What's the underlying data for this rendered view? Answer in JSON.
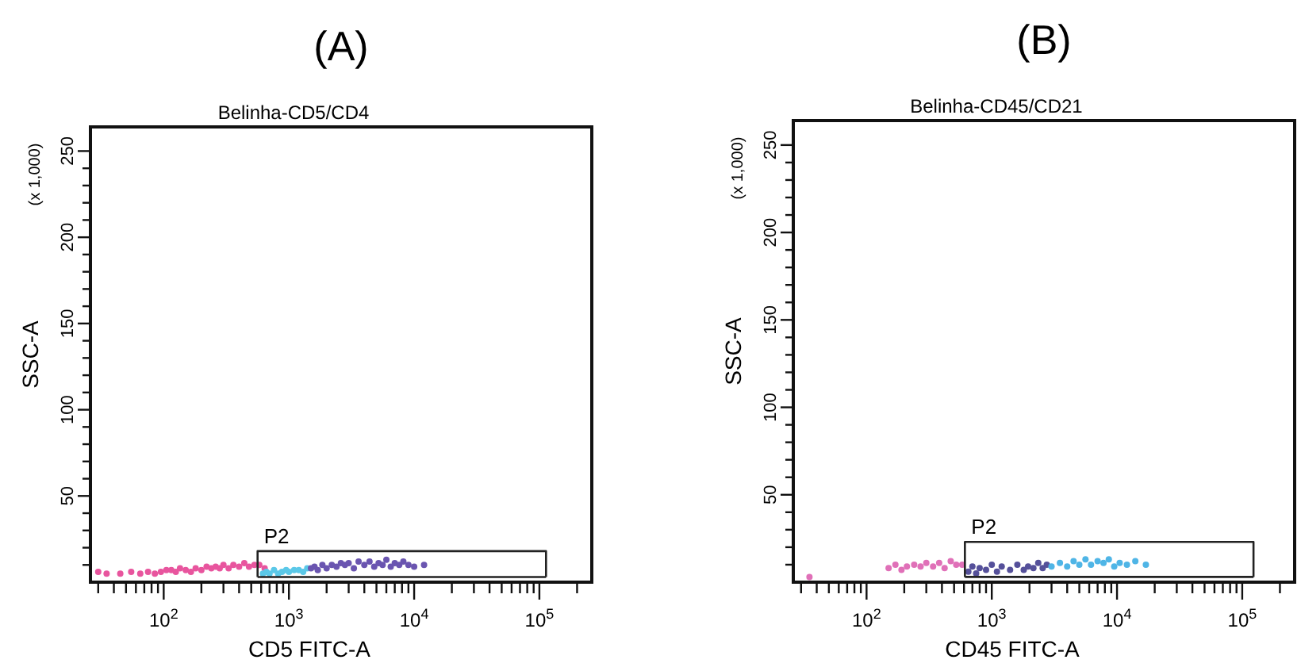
{
  "chart_data": [
    {
      "type": "scatter",
      "title": "(A)",
      "subtitle": "Belinha-CD5/CD4",
      "xlabel": "CD5 FITC-A",
      "ylabel": "SSC-A",
      "log": "x",
      "marker": "circle",
      "annotations": [
        "(x 1,000)",
        {
          "text": "P2",
          "x": 562,
          "y": 18
        }
      ],
      "xlim": [
        26,
        262144
      ],
      "ylim": [
        0,
        264
      ],
      "xticks": [
        {
          "value": 30,
          "label": null
        },
        {
          "value": 40,
          "label": null
        },
        {
          "value": 50,
          "label": null
        },
        {
          "value": 60,
          "label": null
        },
        {
          "value": 70,
          "label": null
        },
        {
          "value": 80,
          "label": null
        },
        {
          "value": 90,
          "label": null
        },
        {
          "value": 100,
          "label": "10$^{2}$"
        },
        {
          "value": 200,
          "label": null
        },
        {
          "value": 300,
          "label": null
        },
        {
          "value": 400,
          "label": null
        },
        {
          "value": 500,
          "label": null
        },
        {
          "value": 600,
          "label": null
        },
        {
          "value": 700,
          "label": null
        },
        {
          "value": 800,
          "label": null
        },
        {
          "value": 900,
          "label": null
        },
        {
          "value": 1000,
          "label": "10$^{3}$"
        },
        {
          "value": 2000,
          "label": null
        },
        {
          "value": 3000,
          "label": null
        },
        {
          "value": 4000,
          "label": null
        },
        {
          "value": 5000,
          "label": null
        },
        {
          "value": 6000,
          "label": null
        },
        {
          "value": 7000,
          "label": null
        },
        {
          "value": 8000,
          "label": null
        },
        {
          "value": 9000,
          "label": null
        },
        {
          "value": 10000,
          "label": "10$^{4}$"
        },
        {
          "value": 20000,
          "label": null
        },
        {
          "value": 30000,
          "label": null
        },
        {
          "value": 40000,
          "label": null
        },
        {
          "value": 50000,
          "label": null
        },
        {
          "value": 60000,
          "label": null
        },
        {
          "value": 70000,
          "label": null
        },
        {
          "value": 80000,
          "label": null
        },
        {
          "value": 90000,
          "label": null
        },
        {
          "value": 100000,
          "label": "10$^{5}$"
        },
        {
          "value": 200000,
          "label": null
        }
      ],
      "yticks": [
        {
          "value": 10,
          "label": null
        },
        {
          "value": 20,
          "label": null
        },
        {
          "value": 30,
          "label": null
        },
        {
          "value": 40,
          "label": null
        },
        50,
        {
          "value": 60,
          "label": null
        },
        {
          "value": 70,
          "label": null
        },
        {
          "value": 80,
          "label": null
        },
        {
          "value": 90,
          "label": null
        },
        100,
        {
          "value": 110,
          "label": null
        },
        {
          "value": 120,
          "label": null
        },
        {
          "value": 130,
          "label": null
        },
        {
          "value": 140,
          "label": null
        },
        150,
        {
          "value": 160,
          "label": null
        },
        {
          "value": 170,
          "label": null
        },
        {
          "value": 180,
          "label": null
        },
        {
          "value": 190,
          "label": null
        },
        200,
        {
          "value": 210,
          "label": null
        },
        {
          "value": 220,
          "label": null
        },
        {
          "value": 230,
          "label": null
        },
        {
          "value": 240,
          "label": null
        },
        250
      ],
      "series": [
        {
          "color": "#e8559e",
          "x": [
            30,
            35,
            45,
            55,
            65,
            75,
            85,
            95,
            105,
            115,
            125,
            135,
            150,
            165,
            180,
            200,
            220,
            240,
            260,
            280,
            300,
            330,
            360,
            400,
            440,
            480,
            530,
            580,
            640
          ],
          "values": [
            6,
            5,
            5,
            6,
            5,
            6,
            5,
            6,
            7,
            7,
            6,
            8,
            7,
            6,
            8,
            7,
            9,
            8,
            9,
            8,
            10,
            8,
            10,
            9,
            11,
            9,
            10,
            10,
            8
          ]
        },
        {
          "color": "#5bc8e8",
          "x": [
            620,
            660,
            700,
            760,
            820,
            880,
            950,
            1000,
            1100,
            1200,
            1300,
            1400
          ],
          "values": [
            5,
            6,
            5,
            7,
            5,
            6,
            7,
            6,
            7,
            7,
            6,
            8
          ]
        },
        {
          "color": "#6a55b0",
          "x": [
            1500,
            1600,
            1700,
            1850,
            2000,
            2200,
            2400,
            2600,
            2800,
            3000,
            3300,
            3600,
            4000,
            4400,
            4800,
            5200,
            5600,
            6000,
            6500,
            7000,
            7600,
            8200,
            9000,
            10000,
            12000
          ],
          "values": [
            8,
            9,
            7,
            10,
            8,
            10,
            9,
            11,
            10,
            11,
            8,
            12,
            10,
            12,
            9,
            11,
            10,
            13,
            9,
            11,
            10,
            12,
            10,
            9,
            10
          ]
        },
        {
          "type": "line",
          "marker": "none",
          "color": "#222222",
          "x": [
            562,
            562,
            113000,
            113000
          ],
          "values": [
            3,
            18,
            18,
            3
          ]
        },
        {
          "type": "line",
          "marker": "none",
          "color": "#222222",
          "x": [
            562,
            113000
          ],
          "values": [
            3,
            3
          ]
        }
      ]
    },
    {
      "type": "scatter",
      "title": "(B)",
      "subtitle": "Belinha-CD45/CD21",
      "xlabel": "CD45 FITC-A",
      "ylabel": "SSC-A",
      "log": "x",
      "marker": "circle",
      "annotations": [
        "(x 1,000)",
        {
          "text": "P2",
          "x": 610,
          "y": 23
        }
      ],
      "xlim": [
        26,
        262144
      ],
      "ylim": [
        0,
        264
      ],
      "xticks": [
        {
          "value": 30,
          "label": null
        },
        {
          "value": 40,
          "label": null
        },
        {
          "value": 50,
          "label": null
        },
        {
          "value": 60,
          "label": null
        },
        {
          "value": 70,
          "label": null
        },
        {
          "value": 80,
          "label": null
        },
        {
          "value": 90,
          "label": null
        },
        {
          "value": 100,
          "label": "10$^{2}$"
        },
        {
          "value": 200,
          "label": null
        },
        {
          "value": 300,
          "label": null
        },
        {
          "value": 400,
          "label": null
        },
        {
          "value": 500,
          "label": null
        },
        {
          "value": 600,
          "label": null
        },
        {
          "value": 700,
          "label": null
        },
        {
          "value": 800,
          "label": null
        },
        {
          "value": 900,
          "label": null
        },
        {
          "value": 1000,
          "label": "10$^{3}$"
        },
        {
          "value": 2000,
          "label": null
        },
        {
          "value": 3000,
          "label": null
        },
        {
          "value": 4000,
          "label": null
        },
        {
          "value": 5000,
          "label": null
        },
        {
          "value": 6000,
          "label": null
        },
        {
          "value": 7000,
          "label": null
        },
        {
          "value": 8000,
          "label": null
        },
        {
          "value": 9000,
          "label": null
        },
        {
          "value": 10000,
          "label": "10$^{4}$"
        },
        {
          "value": 20000,
          "label": null
        },
        {
          "value": 30000,
          "label": null
        },
        {
          "value": 40000,
          "label": null
        },
        {
          "value": 50000,
          "label": null
        },
        {
          "value": 60000,
          "label": null
        },
        {
          "value": 70000,
          "label": null
        },
        {
          "value": 80000,
          "label": null
        },
        {
          "value": 90000,
          "label": null
        },
        {
          "value": 100000,
          "label": "10$^{5}$"
        },
        {
          "value": 200000,
          "label": null
        }
      ],
      "yticks": [
        {
          "value": 10,
          "label": null
        },
        {
          "value": 20,
          "label": null
        },
        {
          "value": 30,
          "label": null
        },
        {
          "value": 40,
          "label": null
        },
        50,
        {
          "value": 60,
          "label": null
        },
        {
          "value": 70,
          "label": null
        },
        {
          "value": 80,
          "label": null
        },
        {
          "value": 90,
          "label": null
        },
        100,
        {
          "value": 110,
          "label": null
        },
        {
          "value": 120,
          "label": null
        },
        {
          "value": 130,
          "label": null
        },
        {
          "value": 140,
          "label": null
        },
        150,
        {
          "value": 160,
          "label": null
        },
        {
          "value": 170,
          "label": null
        },
        {
          "value": 180,
          "label": null
        },
        {
          "value": 190,
          "label": null
        },
        200,
        {
          "value": 210,
          "label": null
        },
        {
          "value": 220,
          "label": null
        },
        {
          "value": 230,
          "label": null
        },
        {
          "value": 240,
          "label": null
        },
        250
      ],
      "series": [
        {
          "color": "#e070b8",
          "x": [
            35,
            150,
            170,
            190,
            210,
            240,
            270,
            300,
            340,
            380,
            420,
            470,
            520,
            580
          ],
          "values": [
            3,
            8,
            10,
            7,
            9,
            10,
            9,
            11,
            9,
            11,
            8,
            12,
            10,
            10
          ]
        },
        {
          "color": "#55509a",
          "x": [
            650,
            700,
            750,
            800,
            900,
            1000,
            1100,
            1200,
            1400,
            1600,
            1800,
            1950,
            2150,
            2350,
            2550,
            2750
          ],
          "values": [
            6,
            9,
            5,
            8,
            7,
            10,
            6,
            9,
            7,
            10,
            7,
            9,
            8,
            11,
            8,
            10
          ]
        },
        {
          "color": "#4fb5e6",
          "x": [
            3000,
            3500,
            4000,
            4500,
            5000,
            5600,
            6200,
            7000,
            7800,
            8600,
            9500,
            10500,
            12000,
            14000,
            17000
          ],
          "values": [
            9,
            11,
            9,
            12,
            10,
            13,
            10,
            12,
            11,
            13,
            9,
            11,
            10,
            12,
            10
          ]
        },
        {
          "type": "line",
          "marker": "none",
          "color": "#222222",
          "x": [
            610,
            610,
            123000,
            123000
          ],
          "values": [
            3,
            23,
            23,
            3
          ]
        },
        {
          "type": "line",
          "marker": "none",
          "color": "#222222",
          "x": [
            610,
            123000
          ],
          "values": [
            3,
            3
          ]
        }
      ]
    }
  ]
}
